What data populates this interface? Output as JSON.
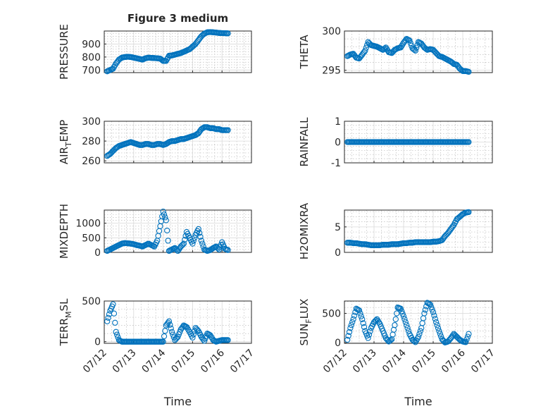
{
  "chart_data": [
    {
      "type": "scatter",
      "title": "Figure 3 medium",
      "ylabel": "PRESSURE",
      "ylim": [
        680,
        1000
      ],
      "yticks": [
        700,
        800,
        900
      ],
      "xlim": [
        0,
        5
      ],
      "x_tick_labels": [
        "07/12",
        "07/13",
        "07/14",
        "07/15",
        "07/16",
        "07/17"
      ],
      "show_x_tick_labels": false,
      "xlabel": "",
      "series": [
        {
          "x": [
            0.1,
            0.2,
            0.3,
            0.4,
            0.5,
            0.6,
            0.7,
            0.8,
            0.9,
            1.0,
            1.1,
            1.2,
            1.3,
            1.4,
            1.5,
            1.6,
            1.7,
            1.8,
            1.9,
            2.0,
            2.1,
            2.2,
            2.3,
            2.4,
            2.5,
            2.6,
            2.7,
            2.8,
            2.9,
            3.0,
            3.1,
            3.2,
            3.3,
            3.4,
            3.5,
            3.6,
            3.7,
            3.8,
            3.9,
            4.0,
            4.1,
            4.2
          ],
          "y": [
            690,
            700,
            710,
            750,
            780,
            795,
            800,
            802,
            800,
            795,
            790,
            785,
            780,
            790,
            795,
            793,
            792,
            790,
            788,
            770,
            770,
            810,
            812,
            818,
            825,
            830,
            840,
            850,
            860,
            880,
            900,
            930,
            960,
            980,
            990,
            992,
            990,
            988,
            985,
            984,
            983,
            982
          ]
        }
      ]
    },
    {
      "type": "scatter",
      "ylabel": "THETA",
      "ylim": [
        294.7,
        300
      ],
      "yticks": [
        295,
        300
      ],
      "xlim": [
        0,
        5
      ],
      "show_x_tick_labels": false,
      "series": [
        {
          "x": [
            0.1,
            0.2,
            0.3,
            0.4,
            0.5,
            0.6,
            0.7,
            0.8,
            0.9,
            1.0,
            1.1,
            1.2,
            1.3,
            1.4,
            1.5,
            1.6,
            1.7,
            1.8,
            1.9,
            2.0,
            2.1,
            2.2,
            2.3,
            2.4,
            2.5,
            2.6,
            2.7,
            2.8,
            2.9,
            3.0,
            3.1,
            3.2,
            3.3,
            3.4,
            3.5,
            3.6,
            3.7,
            3.8,
            3.9,
            4.0,
            4.1,
            4.2
          ],
          "y": [
            296.8,
            297,
            297.1,
            296.6,
            296.5,
            297,
            297.5,
            298.6,
            298.2,
            298.1,
            298,
            297.8,
            297.6,
            297.9,
            297.3,
            297.2,
            297.6,
            297.8,
            297.9,
            298.5,
            299,
            298.8,
            297.8,
            297.5,
            298.6,
            298.4,
            297.9,
            297.6,
            297.7,
            297.6,
            297.2,
            296.8,
            296.7,
            296.5,
            296.3,
            296.1,
            295.8,
            295.7,
            295.2,
            294.9,
            294.9,
            294.8
          ]
        }
      ]
    },
    {
      "type": "scatter",
      "ylabel": "AIR_TEMP",
      "ylabel_main": "AIR",
      "ylabel_sub": "T",
      "ylabel_rest": "EMP",
      "ylim": [
        258,
        300
      ],
      "yticks": [
        260,
        280,
        300
      ],
      "xlim": [
        0,
        5
      ],
      "show_x_tick_labels": false,
      "series": [
        {
          "x": [
            0.1,
            0.2,
            0.3,
            0.4,
            0.5,
            0.6,
            0.7,
            0.8,
            0.9,
            1.0,
            1.1,
            1.2,
            1.3,
            1.4,
            1.5,
            1.6,
            1.7,
            1.8,
            1.9,
            2.0,
            2.1,
            2.2,
            2.3,
            2.4,
            2.5,
            2.6,
            2.7,
            2.8,
            2.9,
            3.0,
            3.1,
            3.2,
            3.3,
            3.4,
            3.5,
            3.6,
            3.7,
            3.8,
            3.9,
            4.0,
            4.1,
            4.2
          ],
          "y": [
            265,
            267,
            270,
            273,
            275,
            276,
            277,
            278,
            279,
            278,
            277,
            276,
            276,
            277,
            277,
            276,
            276,
            277,
            277,
            276,
            277,
            279,
            280,
            280,
            281,
            282,
            282,
            283,
            284,
            285,
            286,
            288,
            292,
            294,
            294,
            293,
            293,
            292,
            292,
            291,
            291,
            291
          ]
        }
      ]
    },
    {
      "type": "scatter",
      "ylabel": "RAINFALL",
      "ylim": [
        -1,
        1
      ],
      "yticks": [
        -1,
        0,
        1
      ],
      "xlim": [
        0,
        5
      ],
      "show_x_tick_labels": false,
      "series": [
        {
          "x": [
            0.1,
            0.2,
            0.3,
            0.4,
            0.5,
            0.6,
            0.7,
            0.8,
            0.9,
            1.0,
            1.1,
            1.2,
            1.3,
            1.4,
            1.5,
            1.6,
            1.7,
            1.8,
            1.9,
            2.0,
            2.1,
            2.2,
            2.3,
            2.4,
            2.5,
            2.6,
            2.7,
            2.8,
            2.9,
            3.0,
            3.1,
            3.2,
            3.3,
            3.4,
            3.5,
            3.6,
            3.7,
            3.8,
            3.9,
            4.0,
            4.1,
            4.2
          ],
          "y": [
            0,
            0,
            0,
            0,
            0,
            0,
            0,
            0,
            0,
            0,
            0,
            0,
            0,
            0,
            0,
            0,
            0,
            0,
            0,
            0,
            0,
            0,
            0,
            0,
            0,
            0,
            0,
            0,
            0,
            0,
            0,
            0,
            0,
            0,
            0,
            0,
            0,
            0,
            0,
            0,
            0,
            0
          ]
        }
      ]
    },
    {
      "type": "scatter",
      "ylabel": "MIXDEPTH",
      "ylim": [
        0,
        1450
      ],
      "yticks": [
        0,
        500,
        1000
      ],
      "xlim": [
        0,
        5
      ],
      "show_x_tick_labels": false,
      "series": [
        {
          "x": [
            0.1,
            0.2,
            0.3,
            0.4,
            0.5,
            0.6,
            0.7,
            0.8,
            0.9,
            1.0,
            1.1,
            1.2,
            1.3,
            1.4,
            1.5,
            1.6,
            1.7,
            1.8,
            1.9,
            2.0,
            2.1,
            2.2,
            2.3,
            2.4,
            2.5,
            2.6,
            2.7,
            2.8,
            2.9,
            3.0,
            3.1,
            3.2,
            3.3,
            3.4,
            3.5,
            3.6,
            3.7,
            3.8,
            3.9,
            4.0,
            4.1,
            4.2
          ],
          "y": [
            50,
            100,
            150,
            200,
            250,
            300,
            320,
            310,
            300,
            280,
            250,
            230,
            200,
            250,
            300,
            250,
            200,
            400,
            900,
            1400,
            1100,
            50,
            100,
            150,
            50,
            200,
            300,
            700,
            500,
            300,
            600,
            800,
            400,
            100,
            50,
            80,
            150,
            200,
            100,
            350,
            120,
            80
          ]
        }
      ]
    },
    {
      "type": "scatter",
      "ylabel": "H2OMIXRA",
      "ylim": [
        0,
        8.3
      ],
      "yticks": [
        0,
        5
      ],
      "xlim": [
        0,
        5
      ],
      "show_x_tick_labels": false,
      "series": [
        {
          "x": [
            0.1,
            0.2,
            0.3,
            0.4,
            0.5,
            0.6,
            0.7,
            0.8,
            0.9,
            1.0,
            1.1,
            1.2,
            1.3,
            1.4,
            1.5,
            1.6,
            1.7,
            1.8,
            1.9,
            2.0,
            2.1,
            2.2,
            2.3,
            2.4,
            2.5,
            2.6,
            2.7,
            2.8,
            2.9,
            3.0,
            3.1,
            3.2,
            3.3,
            3.4,
            3.5,
            3.6,
            3.7,
            3.8,
            3.9,
            4.0,
            4.1,
            4.2
          ],
          "y": [
            1.9,
            1.9,
            1.8,
            1.8,
            1.7,
            1.6,
            1.6,
            1.5,
            1.4,
            1.4,
            1.4,
            1.4,
            1.5,
            1.5,
            1.5,
            1.6,
            1.6,
            1.6,
            1.7,
            1.8,
            1.8,
            1.9,
            1.9,
            2.0,
            2.0,
            2.0,
            2.0,
            2.0,
            2.0,
            2.1,
            2.1,
            2.2,
            2.4,
            3.2,
            3.8,
            4.6,
            5.4,
            6.5,
            7.0,
            7.5,
            7.8,
            7.9
          ]
        }
      ]
    },
    {
      "type": "scatter",
      "ylabel": "TERR_MSL",
      "ylabel_main": "TERR",
      "ylabel_sub": "M",
      "ylabel_rest": "SL",
      "ylim": [
        -20,
        500
      ],
      "yticks": [
        0,
        500
      ],
      "xlim": [
        0,
        5
      ],
      "x_tick_labels": [
        "07/12",
        "07/13",
        "07/14",
        "07/15",
        "07/16",
        "07/17"
      ],
      "show_x_tick_labels": true,
      "xlabel": "Time",
      "series": [
        {
          "x": [
            0.1,
            0.2,
            0.3,
            0.4,
            0.5,
            0.6,
            0.7,
            0.8,
            0.9,
            1.0,
            1.1,
            1.2,
            1.3,
            1.4,
            1.5,
            1.6,
            1.7,
            1.8,
            1.9,
            2.0,
            2.1,
            2.2,
            2.3,
            2.4,
            2.5,
            2.6,
            2.7,
            2.8,
            2.9,
            3.0,
            3.1,
            3.2,
            3.3,
            3.4,
            3.5,
            3.6,
            3.7,
            3.8,
            3.9,
            4.0,
            4.1,
            4.2
          ],
          "y": [
            250,
            380,
            460,
            120,
            20,
            0,
            0,
            0,
            0,
            0,
            0,
            0,
            0,
            0,
            0,
            0,
            0,
            0,
            0,
            0,
            200,
            250,
            120,
            20,
            60,
            150,
            200,
            180,
            120,
            50,
            170,
            130,
            60,
            10,
            100,
            80,
            20,
            0,
            10,
            20,
            20,
            20
          ]
        }
      ]
    },
    {
      "type": "scatter",
      "ylabel": "SUN_FLUX",
      "ylabel_main": "SUN",
      "ylabel_sub": "F",
      "ylabel_rest": "LUX",
      "ylim": [
        -10,
        710
      ],
      "yticks": [
        0,
        500
      ],
      "xlim": [
        0,
        5
      ],
      "x_tick_labels": [
        "07/12",
        "07/13",
        "07/14",
        "07/15",
        "07/16",
        "07/17"
      ],
      "show_x_tick_labels": true,
      "xlabel": "Time",
      "series": [
        {
          "x": [
            0.1,
            0.2,
            0.3,
            0.4,
            0.5,
            0.6,
            0.7,
            0.8,
            0.9,
            1.0,
            1.1,
            1.2,
            1.3,
            1.4,
            1.5,
            1.6,
            1.7,
            1.8,
            1.9,
            2.0,
            2.1,
            2.2,
            2.3,
            2.4,
            2.5,
            2.6,
            2.7,
            2.8,
            2.9,
            3.0,
            3.1,
            3.2,
            3.3,
            3.4,
            3.5,
            3.6,
            3.7,
            3.8,
            3.9,
            4.0,
            4.1,
            4.2
          ],
          "y": [
            50,
            250,
            400,
            580,
            550,
            400,
            200,
            80,
            250,
            350,
            400,
            320,
            200,
            80,
            20,
            60,
            300,
            600,
            580,
            450,
            300,
            150,
            50,
            10,
            100,
            250,
            500,
            680,
            650,
            520,
            350,
            200,
            60,
            5,
            20,
            80,
            150,
            100,
            50,
            20,
            10,
            150
          ]
        }
      ]
    }
  ]
}
